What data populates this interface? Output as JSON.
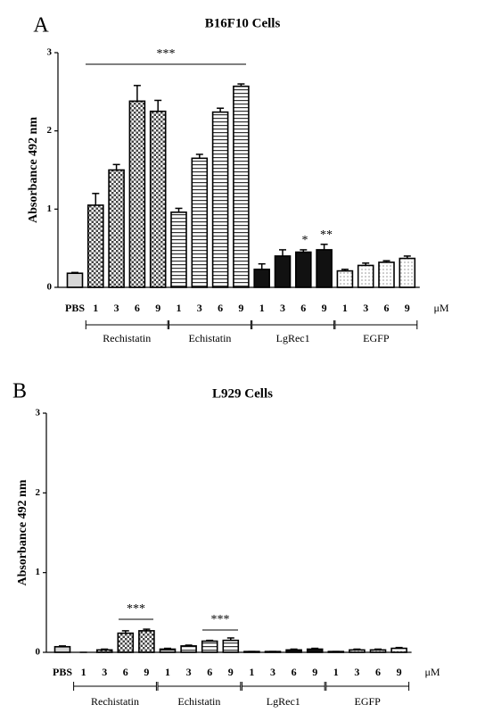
{
  "chart_data": [
    {
      "type": "bar",
      "panel": "A",
      "title": "B16F10 Cells",
      "y_label": "Absorbance 492 nm",
      "unit": "μM",
      "ylim": [
        0,
        3
      ],
      "yticks": [
        0,
        1,
        2,
        3
      ],
      "series": [
        {
          "categories": [
            "PBS"
          ],
          "values": [
            0.18
          ],
          "errors": [
            0.01
          ],
          "pattern": "gray"
        },
        {
          "name": "Rechistatin",
          "categories": [
            "1",
            "3",
            "6",
            "9"
          ],
          "values": [
            1.05,
            1.5,
            2.38,
            2.25
          ],
          "errors": [
            0.15,
            0.07,
            0.2,
            0.14
          ],
          "pattern": "crosshatch"
        },
        {
          "name": "Echistatin",
          "categories": [
            "1",
            "3",
            "6",
            "9"
          ],
          "values": [
            0.96,
            1.65,
            2.24,
            2.57
          ],
          "errors": [
            0.05,
            0.05,
            0.05,
            0.03
          ],
          "pattern": "hlines"
        },
        {
          "name": "LgRec1",
          "categories": [
            "1",
            "3",
            "6",
            "9"
          ],
          "values": [
            0.23,
            0.4,
            0.45,
            0.48
          ],
          "errors": [
            0.07,
            0.08,
            0.03,
            0.07
          ],
          "pattern": "solid"
        },
        {
          "name": "EGFP",
          "categories": [
            "1",
            "3",
            "6",
            "9"
          ],
          "values": [
            0.21,
            0.28,
            0.32,
            0.37
          ],
          "errors": [
            0.02,
            0.03,
            0.02,
            0.03
          ],
          "pattern": "dots"
        }
      ],
      "annotations": [
        {
          "text": "***"
        },
        {
          "text": "*"
        },
        {
          "text": "**"
        }
      ]
    },
    {
      "type": "bar",
      "panel": "B",
      "title": "L929 Cells",
      "y_label": "Absorbance 492 nm",
      "unit": "μM",
      "ylim": [
        0,
        3
      ],
      "yticks": [
        0,
        1,
        2,
        3
      ],
      "series": [
        {
          "categories": [
            "PBS"
          ],
          "values": [
            0.07
          ],
          "errors": [
            0.01
          ],
          "pattern": "gray"
        },
        {
          "name": "Rechistatin",
          "categories": [
            "1",
            "3",
            "6",
            "9"
          ],
          "values": [
            0.0,
            0.03,
            0.24,
            0.27
          ],
          "errors": [
            0.0,
            0.01,
            0.03,
            0.02
          ],
          "pattern": "crosshatch"
        },
        {
          "name": "Echistatin",
          "categories": [
            "1",
            "3",
            "6",
            "9"
          ],
          "values": [
            0.04,
            0.08,
            0.14,
            0.15
          ],
          "errors": [
            0.01,
            0.01,
            0.01,
            0.03
          ],
          "pattern": "hlines"
        },
        {
          "name": "LgRec1",
          "categories": [
            "1",
            "3",
            "6",
            "9"
          ],
          "values": [
            0.01,
            0.01,
            0.03,
            0.04
          ],
          "errors": [
            0.0,
            0.0,
            0.01,
            0.01
          ],
          "pattern": "solid"
        },
        {
          "name": "EGFP",
          "categories": [
            "1",
            "3",
            "6",
            "9"
          ],
          "values": [
            0.01,
            0.03,
            0.03,
            0.05
          ],
          "errors": [
            0.0,
            0.01,
            0.01,
            0.01
          ],
          "pattern": "dots"
        }
      ],
      "annotations": [
        {
          "text": "***"
        },
        {
          "text": "***"
        }
      ]
    }
  ]
}
